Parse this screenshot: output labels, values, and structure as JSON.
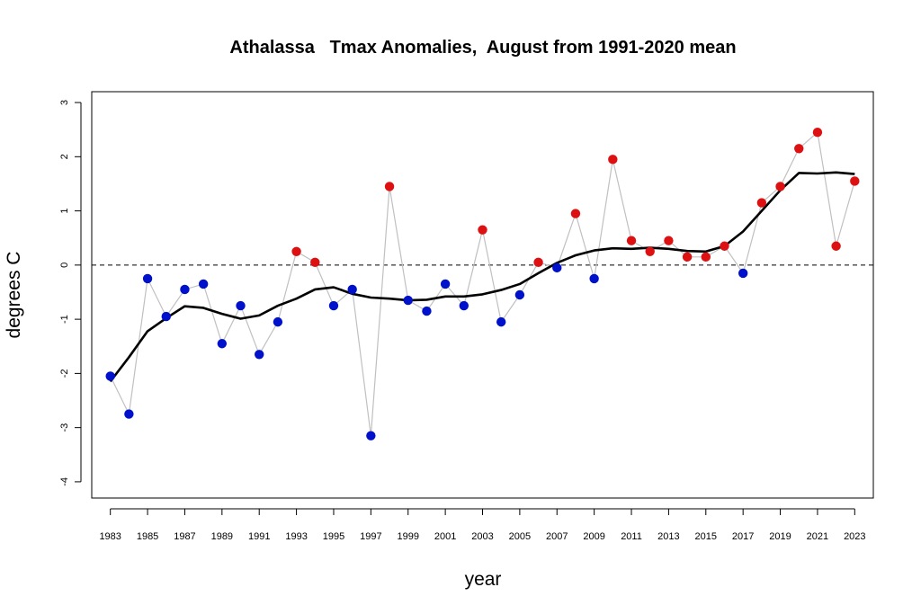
{
  "chart_data": {
    "type": "scatter",
    "title": "Athalassa   Tmax Anomalies,  August from 1991-2020 mean",
    "xlabel": "year",
    "ylabel": "degrees C",
    "xlim": [
      1982,
      2024
    ],
    "ylim": [
      -4.3,
      3.2
    ],
    "x_ticks": [
      1983,
      1985,
      1987,
      1989,
      1991,
      1993,
      1995,
      1997,
      1999,
      2001,
      2003,
      2005,
      2007,
      2009,
      2011,
      2013,
      2015,
      2017,
      2019,
      2021,
      2023
    ],
    "y_ticks": [
      -4,
      -3,
      -2,
      -1,
      0,
      1,
      2,
      3
    ],
    "reference_line": 0,
    "colors": {
      "positive": "#dd1111",
      "negative": "#0011cc",
      "connector": "#c0c0c0",
      "smooth": "#000000",
      "reference": "#000000"
    },
    "series": [
      {
        "type": "scatter",
        "x": [
          1983,
          1984,
          1985,
          1986,
          1987,
          1988,
          1989,
          1990,
          1991,
          1992,
          1993,
          1994,
          1995,
          1996,
          1997,
          1998,
          1999,
          2000,
          2001,
          2002,
          2003,
          2004,
          2005,
          2006,
          2007,
          2008,
          2009,
          2010,
          2011,
          2012,
          2013,
          2014,
          2015,
          2016,
          2017,
          2018,
          2019,
          2020,
          2021,
          2022,
          2023
        ],
        "y": [
          -2.05,
          -2.75,
          -0.25,
          -0.95,
          -0.45,
          -0.35,
          -1.45,
          -0.75,
          -1.65,
          -1.05,
          0.25,
          0.05,
          -0.75,
          -0.45,
          -3.15,
          1.45,
          -0.65,
          -0.85,
          -0.35,
          -0.75,
          0.65,
          -1.05,
          -0.55,
          0.05,
          -0.05,
          0.95,
          -0.25,
          1.95,
          0.45,
          0.25,
          0.45,
          0.15,
          0.15,
          0.35,
          -0.15,
          1.15,
          1.45,
          2.15,
          2.45,
          0.35,
          1.55
        ]
      },
      {
        "type": "line",
        "x": [
          1983,
          1984,
          1985,
          1986,
          1987,
          1988,
          1989,
          1990,
          1991,
          1992,
          1993,
          1994,
          1995,
          1996,
          1997,
          1998,
          1999,
          2000,
          2001,
          2002,
          2003,
          2004,
          2005,
          2006,
          2007,
          2008,
          2009,
          2010,
          2011,
          2012,
          2013,
          2014,
          2015,
          2016,
          2017,
          2018,
          2019,
          2020,
          2021,
          2022,
          2023
        ],
        "y": [
          -2.15,
          -1.7,
          -1.22,
          -0.98,
          -0.76,
          -0.79,
          -0.9,
          -0.99,
          -0.93,
          -0.75,
          -0.62,
          -0.45,
          -0.41,
          -0.53,
          -0.6,
          -0.62,
          -0.65,
          -0.64,
          -0.58,
          -0.58,
          -0.54,
          -0.46,
          -0.35,
          -0.15,
          0.04,
          0.18,
          0.27,
          0.31,
          0.3,
          0.32,
          0.3,
          0.26,
          0.25,
          0.35,
          0.62,
          1.0,
          1.38,
          1.7,
          1.69,
          1.71,
          1.68
        ]
      }
    ]
  }
}
